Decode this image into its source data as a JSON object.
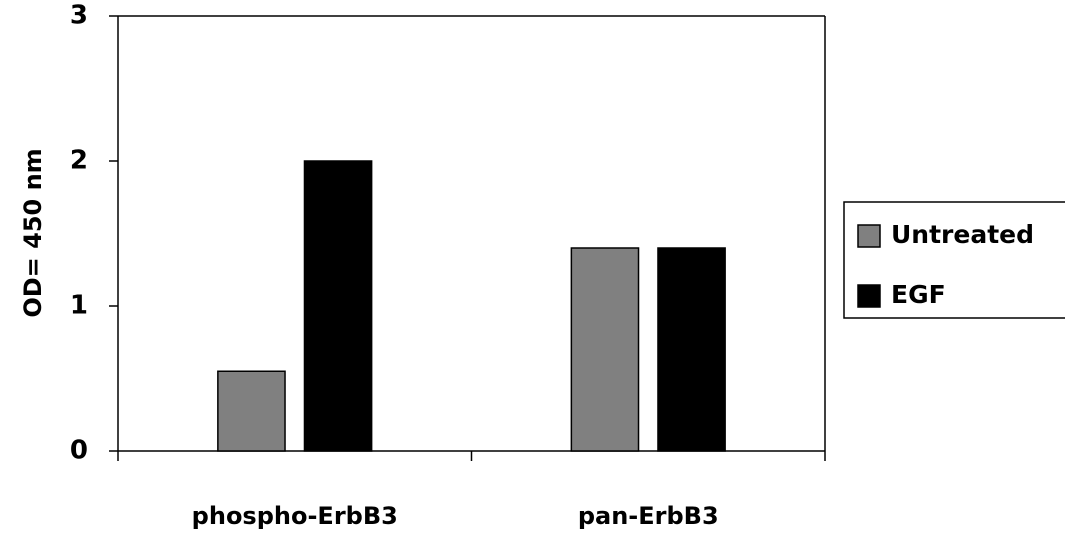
{
  "chart_data": {
    "type": "bar",
    "title": "",
    "xlabel": "",
    "ylabel": "OD= 450 nm",
    "ylim": [
      0,
      3
    ],
    "yticks": [
      0,
      1,
      2,
      3
    ],
    "categories": [
      "phospho-ErbB3",
      "pan-ErbB3"
    ],
    "series": [
      {
        "name": "Untreated",
        "values": [
          0.55,
          1.4
        ],
        "color": "#808080"
      },
      {
        "name": "EGF",
        "values": [
          2.0,
          1.4
        ],
        "color": "#000000"
      }
    ],
    "grid": false,
    "legend": "right",
    "colors": {
      "axis": "#000000",
      "background": "#ffffff"
    }
  }
}
